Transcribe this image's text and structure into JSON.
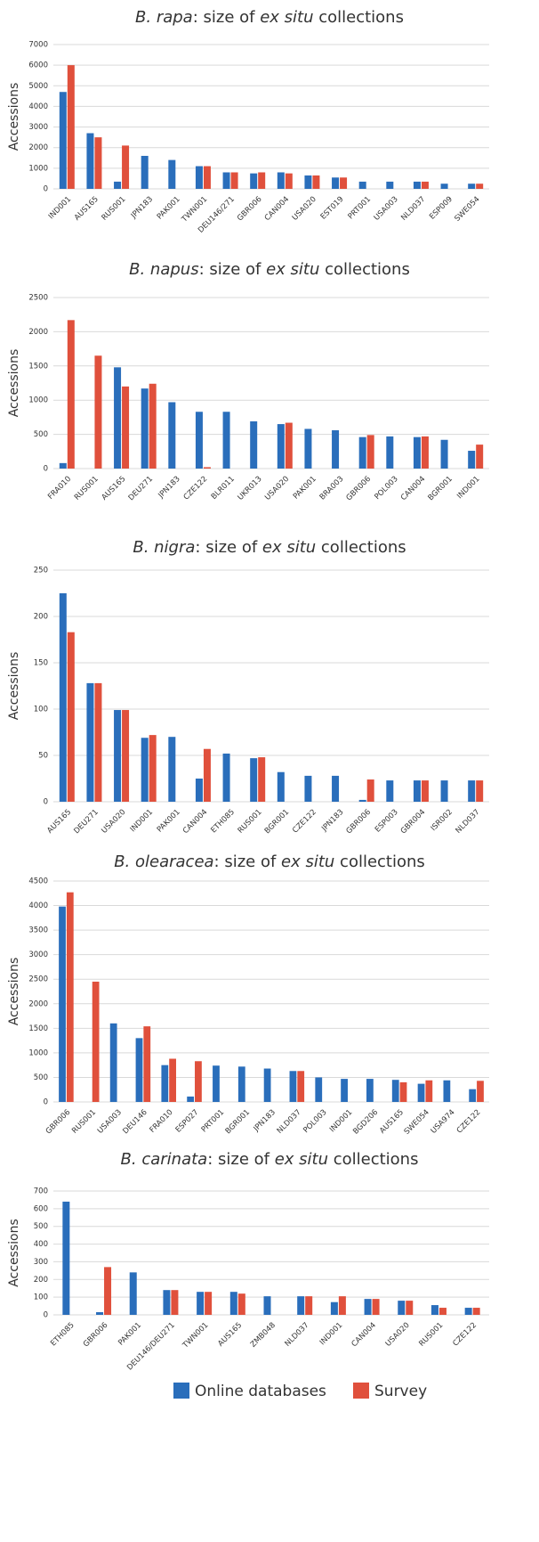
{
  "chart_data": [
    {
      "type": "bar",
      "title": [
        {
          "text": "B. rapa",
          "italic": true
        },
        {
          "text": ": size of ",
          "italic": false
        },
        {
          "text": "ex situ",
          "italic": true
        },
        {
          "text": " collections",
          "italic": false
        }
      ],
      "y_label": "Accessions",
      "categories": [
        "IND001",
        "AUS165",
        "RUS001",
        "JPN183",
        "PAK001",
        "TWN001",
        "DEU146/271",
        "GBR006",
        "CAN004",
        "USA020",
        "EST019",
        "PRT001",
        "USA003",
        "NLD037",
        "ESP009",
        "SWE054"
      ],
      "series": [
        {
          "color": "#2a6ebb",
          "values": [
            4700,
            2700,
            350,
            1600,
            1400,
            1100,
            800,
            750,
            800,
            650,
            550,
            350,
            350,
            350,
            250,
            250
          ]
        },
        {
          "color": "#e0503c",
          "values": [
            6000,
            2500,
            2100,
            null,
            null,
            1100,
            800,
            800,
            750,
            650,
            550,
            null,
            null,
            350,
            null,
            250
          ]
        }
      ],
      "ylim": [
        0,
        7000
      ],
      "yticks": [
        0,
        1000,
        2000,
        3000,
        4000,
        5000,
        6000,
        7000
      ],
      "grid": true
    },
    {
      "type": "bar",
      "title": [
        {
          "text": "B. napus",
          "italic": true
        },
        {
          "text": ": size of ",
          "italic": false
        },
        {
          "text": "ex situ",
          "italic": true
        },
        {
          "text": " collections",
          "italic": false
        }
      ],
      "y_label": "Accessions",
      "categories": [
        "FRA010",
        "RUS001",
        "AUS165",
        "DEU271",
        "JPN183",
        "CZE122",
        "BLR011",
        "UKR013",
        "USA020",
        "PAK001",
        "BRA003",
        "GBR006",
        "POL003",
        "CAN004",
        "BGR001",
        "IND001"
      ],
      "series": [
        {
          "color": "#2a6ebb",
          "values": [
            80,
            null,
            1480,
            1170,
            970,
            830,
            830,
            690,
            650,
            580,
            560,
            460,
            470,
            460,
            420,
            260
          ]
        },
        {
          "color": "#e0503c",
          "values": [
            2170,
            1650,
            1200,
            1240,
            null,
            20,
            null,
            null,
            670,
            null,
            null,
            490,
            null,
            470,
            null,
            350
          ]
        }
      ],
      "ylim": [
        0,
        2500
      ],
      "yticks": [
        0,
        500,
        1000,
        1500,
        2000,
        2500
      ],
      "grid": true
    },
    {
      "type": "bar",
      "title": [
        {
          "text": "B. nigra",
          "italic": true
        },
        {
          "text": ": size of ",
          "italic": false
        },
        {
          "text": "ex situ",
          "italic": true
        },
        {
          "text": " collections",
          "italic": false
        }
      ],
      "y_label": "Accessions",
      "categories": [
        "AUS165",
        "DEU271",
        "USA020",
        "IND001",
        "PAK001",
        "CAN004",
        "ETH085",
        "RUS001",
        "BGR001",
        "CZE122",
        "JPN183",
        "GBR006",
        "ESP003",
        "GBR004",
        "ISR002",
        "NLD037"
      ],
      "series": [
        {
          "color": "#2a6ebb",
          "values": [
            225,
            128,
            99,
            69,
            70,
            25,
            52,
            47,
            32,
            28,
            28,
            2,
            23,
            23,
            23,
            23
          ]
        },
        {
          "color": "#e0503c",
          "values": [
            183,
            128,
            99,
            72,
            null,
            57,
            null,
            48,
            null,
            null,
            null,
            24,
            null,
            23,
            null,
            23
          ]
        }
      ],
      "ylim": [
        0,
        250
      ],
      "yticks": [
        0,
        50,
        100,
        150,
        200,
        250
      ],
      "grid": true
    },
    {
      "type": "bar",
      "title": [
        {
          "text": "B. olearacea",
          "italic": true
        },
        {
          "text": ": size of ",
          "italic": false
        },
        {
          "text": "ex situ",
          "italic": true
        },
        {
          "text": " collections",
          "italic": false
        }
      ],
      "y_label": "Accessions",
      "categories": [
        "GBR006",
        "RUS001",
        "USA003",
        "DEU146",
        "FRA010",
        "ESP027",
        "PRT001",
        "BGR001",
        "JPN183",
        "NLD037",
        "POL003",
        "IND001",
        "BGD206",
        "AUS165",
        "SWE054",
        "USA974",
        "CZE122"
      ],
      "series": [
        {
          "color": "#2a6ebb",
          "values": [
            3980,
            null,
            1600,
            1300,
            750,
            110,
            740,
            720,
            680,
            630,
            500,
            470,
            470,
            450,
            370,
            440,
            260
          ]
        },
        {
          "color": "#e0503c",
          "values": [
            4270,
            2450,
            null,
            1540,
            880,
            830,
            null,
            null,
            null,
            630,
            null,
            null,
            null,
            400,
            440,
            null,
            430
          ]
        }
      ],
      "ylim": [
        0,
        4500
      ],
      "yticks": [
        0,
        500,
        1000,
        1500,
        2000,
        2500,
        3000,
        3500,
        4000,
        4500
      ],
      "grid": true
    },
    {
      "type": "bar",
      "title": [
        {
          "text": "B. carinata",
          "italic": true
        },
        {
          "text": ": size of ",
          "italic": false
        },
        {
          "text": "ex situ",
          "italic": true
        },
        {
          "text": " collections",
          "italic": false
        }
      ],
      "y_label": "Accessions",
      "categories": [
        "ETH085",
        "GBR006",
        "PAK001",
        "DEU146/DEU271",
        "TWN001",
        "AUS165",
        "ZMB048",
        "NLD037",
        "IND001",
        "CAN004",
        "USA020",
        "RUS001",
        "CZE122"
      ],
      "series": [
        {
          "name": "Online databases",
          "color": "#2a6ebb",
          "values": [
            640,
            15,
            240,
            140,
            130,
            130,
            105,
            105,
            72,
            90,
            80,
            55,
            40
          ]
        },
        {
          "name": "Survey",
          "color": "#e0503c",
          "values": [
            null,
            270,
            null,
            140,
            130,
            120,
            null,
            105,
            105,
            90,
            80,
            40,
            40
          ]
        }
      ],
      "ylim": [
        0,
        700
      ],
      "yticks": [
        0,
        100,
        200,
        300,
        400,
        500,
        600,
        700
      ],
      "grid": true
    }
  ]
}
